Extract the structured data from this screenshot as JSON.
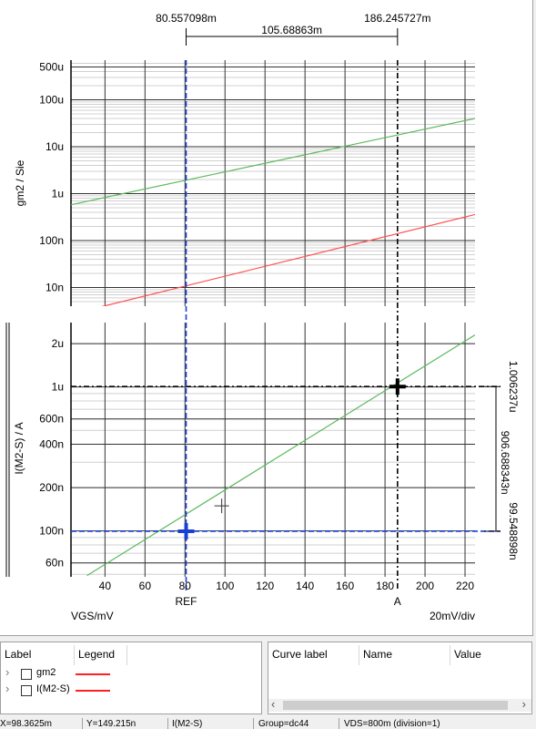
{
  "chart_data": [
    {
      "type": "line",
      "ylabel": "gm2 / Sie",
      "yscale": "log",
      "ylim": [
        4e-09,
        0.0007
      ],
      "yticks": [
        {
          "v": 0.0005,
          "label": "500u"
        },
        {
          "v": 0.0001,
          "label": "100u"
        },
        {
          "v": 1e-05,
          "label": "10u"
        },
        {
          "v": 1e-06,
          "label": "1u"
        },
        {
          "v": 1e-07,
          "label": "100n"
        },
        {
          "v": 1e-08,
          "label": "10n"
        }
      ],
      "series": [
        {
          "color": "#5cb85c",
          "x": [
            23,
            225
          ],
          "y": [
            5.8e-07,
            4e-05
          ]
        },
        {
          "color": "#ff5050",
          "x": [
            23,
            225
          ],
          "y": [
            2.7e-09,
            3.6e-07
          ]
        }
      ]
    },
    {
      "type": "line",
      "ylabel": "I(M2-S) / A",
      "yscale": "log",
      "ylim": [
        4.8e-08,
        2.8e-06
      ],
      "yticks": [
        {
          "v": 2e-06,
          "label": "2u"
        },
        {
          "v": 1e-06,
          "label": "1u"
        },
        {
          "v": 6e-07,
          "label": "600n"
        },
        {
          "v": 4e-07,
          "label": "400n"
        },
        {
          "v": 2e-07,
          "label": "200n"
        },
        {
          "v": 1e-07,
          "label": "100n"
        },
        {
          "v": 6e-08,
          "label": "60n"
        }
      ],
      "series": [
        {
          "color": "#5cb85c",
          "x": [
            31,
            225
          ],
          "y": [
            4.9e-08,
            2.3e-06
          ]
        }
      ]
    }
  ],
  "x_axis": {
    "xlim": [
      23,
      225
    ],
    "ticks": [
      40,
      60,
      80,
      100,
      120,
      140,
      160,
      180,
      200,
      220
    ],
    "label": "VGS/mV",
    "div_label": "20mV/div"
  },
  "cursors": {
    "ref": {
      "label": "REF",
      "x": 80.557098,
      "y": 9.95e-08,
      "color": "#1a3fd4"
    },
    "a": {
      "label": "A",
      "x": 186.245727,
      "y": 1.00623e-06,
      "color": "#000000"
    },
    "ref_x_text": "80.557098m",
    "a_x_text": "186.245727m",
    "dx_text": "105.68863m",
    "a_y_text": "1.006237u",
    "dy_text": "906.688343n",
    "ref_y_text": "99.548898n",
    "pointer": {
      "x": 98.3625,
      "y": 1.49215e-07
    }
  },
  "legend_panel": {
    "col_label": "Label",
    "col_legend": "Legend",
    "items": [
      {
        "name": "gm2",
        "color": "#ff2020"
      },
      {
        "name": "I(M2-S)",
        "color": "#ff2020"
      }
    ]
  },
  "cursor_panel": {
    "col_curve_label": "Curve label",
    "col_name": "Name",
    "col_value": "Value"
  },
  "status": {
    "x": "X=98.3625m",
    "y": "Y=149.215n",
    "trace": "I(M2-S)",
    "group": "Group=dc44",
    "vds": "VDS=800m (division=1)"
  }
}
